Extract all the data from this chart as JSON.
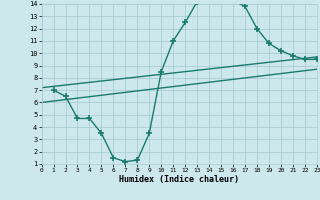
{
  "background_color": "#cde8ec",
  "grid_color": "#aacdd4",
  "line_color": "#1a7a6e",
  "marker": "+",
  "markersize": 4,
  "markeredgewidth": 1.2,
  "linewidth": 1.0,
  "xlabel": "Humidex (Indice chaleur)",
  "xlim": [
    0,
    23
  ],
  "ylim": [
    1,
    14
  ],
  "xticks": [
    0,
    1,
    2,
    3,
    4,
    5,
    6,
    7,
    8,
    9,
    10,
    11,
    12,
    13,
    14,
    15,
    16,
    17,
    18,
    19,
    20,
    21,
    22,
    23
  ],
  "yticks": [
    1,
    2,
    3,
    4,
    5,
    6,
    7,
    8,
    9,
    10,
    11,
    12,
    13,
    14
  ],
  "curve1_x": [
    1,
    2,
    3,
    4,
    5,
    6,
    7,
    8,
    9,
    10,
    11,
    12,
    13,
    14,
    15,
    16,
    17,
    18,
    19,
    20,
    21,
    22,
    23
  ],
  "curve1_y": [
    7.0,
    6.5,
    4.7,
    4.7,
    3.5,
    1.5,
    1.2,
    1.3,
    3.5,
    8.5,
    11.0,
    12.5,
    14.2,
    14.3,
    14.3,
    14.3,
    13.8,
    12.0,
    10.8,
    10.2,
    9.8,
    9.5,
    9.5
  ],
  "curve2_x": [
    0,
    23
  ],
  "curve2_y": [
    7.2,
    9.7
  ],
  "curve3_x": [
    0,
    23
  ],
  "curve3_y": [
    6.0,
    8.7
  ]
}
